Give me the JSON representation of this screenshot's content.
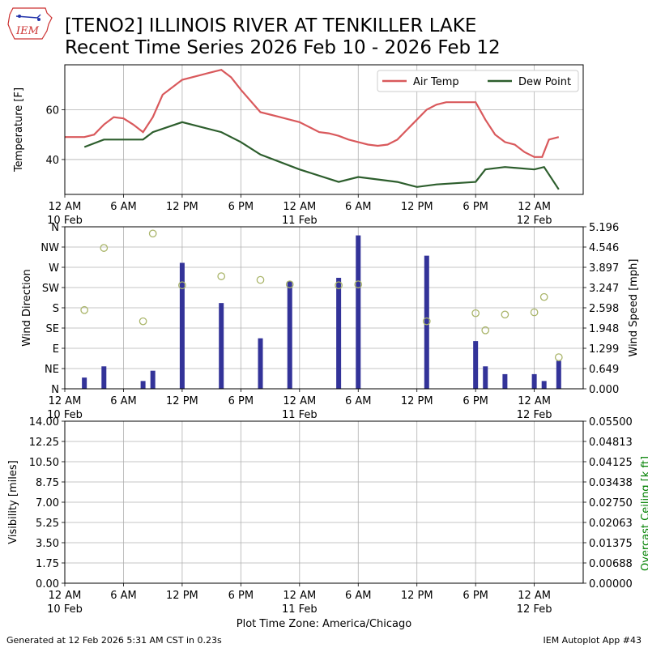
{
  "header": {
    "title_line1": "[TENO2] ILLINOIS RIVER  AT TENKILLER LAKE",
    "title_line2": "Recent Time Series 2026 Feb 10 - 2026 Feb 12",
    "logo_text": "IEM"
  },
  "footer": {
    "generated": "Generated at 12 Feb 2026 5:31 AM CST in 0.23s",
    "app": "IEM Autoplot App #43",
    "xlabel": "Plot Time Zone: America/Chicago"
  },
  "chart_data": [
    {
      "type": "line",
      "ylabel": "Temperature [F]",
      "xlim": [
        0,
        53
      ],
      "ylim": [
        26,
        78
      ],
      "yticks": [
        40,
        60
      ],
      "x_ticks": [
        {
          "x": 0,
          "label": "12 AM",
          "sub": "10 Feb"
        },
        {
          "x": 6,
          "label": "6 AM",
          "sub": ""
        },
        {
          "x": 12,
          "label": "12 PM",
          "sub": ""
        },
        {
          "x": 18,
          "label": "6 PM",
          "sub": ""
        },
        {
          "x": 24,
          "label": "12 AM",
          "sub": "11 Feb"
        },
        {
          "x": 30,
          "label": "6 AM",
          "sub": ""
        },
        {
          "x": 36,
          "label": "12 PM",
          "sub": ""
        },
        {
          "x": 42,
          "label": "6 PM",
          "sub": ""
        },
        {
          "x": 48,
          "label": "12 AM",
          "sub": "12 Feb"
        }
      ],
      "legend_position": "top-right",
      "series": [
        {
          "name": "Air Temp",
          "color": "#d9595c",
          "x": [
            0,
            1,
            2,
            3,
            4,
            5,
            6,
            7,
            8,
            9,
            10,
            12,
            14,
            15,
            16,
            17,
            18,
            20,
            21,
            22,
            23,
            24,
            25,
            26,
            27,
            28,
            29,
            30,
            31,
            32,
            33,
            34,
            35,
            36,
            37,
            38,
            39,
            40,
            41,
            42,
            43,
            44,
            45,
            46,
            47,
            48,
            48.8,
            49.5,
            50.5
          ],
          "y": [
            49,
            49,
            49,
            50,
            54,
            57,
            56.5,
            54,
            51,
            57,
            66,
            72,
            74,
            75,
            76,
            73,
            68,
            59,
            58,
            57,
            56,
            55,
            53,
            51,
            50.5,
            49.5,
            48,
            47,
            46,
            45.5,
            46,
            48,
            52,
            56,
            60,
            62,
            63,
            63,
            63,
            63,
            56,
            50,
            47,
            46,
            43,
            41,
            41,
            48,
            49
          ]
        },
        {
          "name": "Dew Point",
          "color": "#2d5e2d",
          "x": [
            2,
            4,
            8,
            9,
            12,
            16,
            18,
            20,
            24,
            28,
            30,
            34,
            36,
            38,
            42,
            43,
            45,
            48,
            49,
            50.5
          ],
          "y": [
            45,
            48,
            48,
            51,
            55,
            51,
            47,
            42,
            36,
            31,
            33,
            31,
            29,
            30,
            31,
            36,
            37,
            36,
            37,
            28
          ]
        }
      ]
    },
    {
      "type": "bar",
      "ylabel": "Wind Direction",
      "y2label": "Wind Speed [mph]",
      "xlim": [
        0,
        53
      ],
      "ylim": [
        0,
        360
      ],
      "y2lim": [
        0,
        5.196
      ],
      "yticks": [
        {
          "v": 0,
          "label": "N"
        },
        {
          "v": 45,
          "label": "NE"
        },
        {
          "v": 90,
          "label": "E"
        },
        {
          "v": 135,
          "label": "SE"
        },
        {
          "v": 180,
          "label": "S"
        },
        {
          "v": 225,
          "label": "SW"
        },
        {
          "v": 270,
          "label": "W"
        },
        {
          "v": 315,
          "label": "NW"
        },
        {
          "v": 360,
          "label": "N"
        }
      ],
      "y2ticks": [
        "0.000",
        "0.649",
        "1.299",
        "1.948",
        "2.598",
        "3.247",
        "3.897",
        "4.546",
        "5.196"
      ],
      "x_ticks": [
        {
          "x": 0,
          "label": "12 AM",
          "sub": "10 Feb"
        },
        {
          "x": 6,
          "label": "6 AM",
          "sub": ""
        },
        {
          "x": 12,
          "label": "12 PM",
          "sub": ""
        },
        {
          "x": 18,
          "label": "6 PM",
          "sub": ""
        },
        {
          "x": 24,
          "label": "12 AM",
          "sub": "11 Feb"
        },
        {
          "x": 30,
          "label": "6 AM",
          "sub": ""
        },
        {
          "x": 36,
          "label": "12 PM",
          "sub": ""
        },
        {
          "x": 42,
          "label": "6 PM",
          "sub": ""
        },
        {
          "x": 48,
          "label": "12 AM",
          "sub": "12 Feb"
        }
      ],
      "bar_color": "#333399",
      "point_color": "#aab56a",
      "wind_speed": {
        "x": [
          2,
          4,
          8,
          9,
          12,
          16,
          20,
          23,
          28,
          30,
          37,
          42,
          43,
          45,
          48,
          49,
          50.5
        ],
        "y": [
          0.36,
          0.72,
          0.25,
          0.58,
          4.04,
          2.75,
          1.62,
          3.45,
          3.56,
          4.92,
          4.27,
          1.53,
          0.72,
          0.47,
          0.47,
          0.25,
          0.9
        ]
      },
      "wind_direction": {
        "x": [
          2,
          4,
          8,
          9,
          12,
          16,
          20,
          23,
          28,
          30,
          37,
          42,
          43,
          45,
          48,
          49,
          50.5
        ],
        "y": [
          175,
          313,
          150,
          345,
          230,
          250,
          242,
          232,
          230,
          232,
          150,
          168,
          130,
          165,
          170,
          204,
          70
        ]
      }
    },
    {
      "type": "line",
      "ylabel": "Visibility [miles]",
      "y2label": "Overcast Ceiling [k ft]",
      "y2label_color": "#008000",
      "xlim": [
        0,
        53
      ],
      "ylim": [
        0,
        14
      ],
      "yticks": [
        "0.00",
        "1.75",
        "3.50",
        "5.25",
        "7.00",
        "8.75",
        "10.50",
        "12.25",
        "14.00"
      ],
      "y2ticks": [
        "0.00000",
        "0.00688",
        "0.01375",
        "0.02063",
        "0.02750",
        "0.03438",
        "0.04125",
        "0.04813",
        "0.05500"
      ],
      "x_ticks": [
        {
          "x": 0,
          "label": "12 AM",
          "sub": "10 Feb"
        },
        {
          "x": 6,
          "label": "6 AM",
          "sub": ""
        },
        {
          "x": 12,
          "label": "12 PM",
          "sub": ""
        },
        {
          "x": 18,
          "label": "6 PM",
          "sub": ""
        },
        {
          "x": 24,
          "label": "12 AM",
          "sub": "11 Feb"
        },
        {
          "x": 30,
          "label": "6 AM",
          "sub": ""
        },
        {
          "x": 36,
          "label": "12 PM",
          "sub": ""
        },
        {
          "x": 42,
          "label": "6 PM",
          "sub": ""
        },
        {
          "x": 48,
          "label": "12 AM",
          "sub": "12 Feb"
        }
      ],
      "grid": true
    }
  ]
}
